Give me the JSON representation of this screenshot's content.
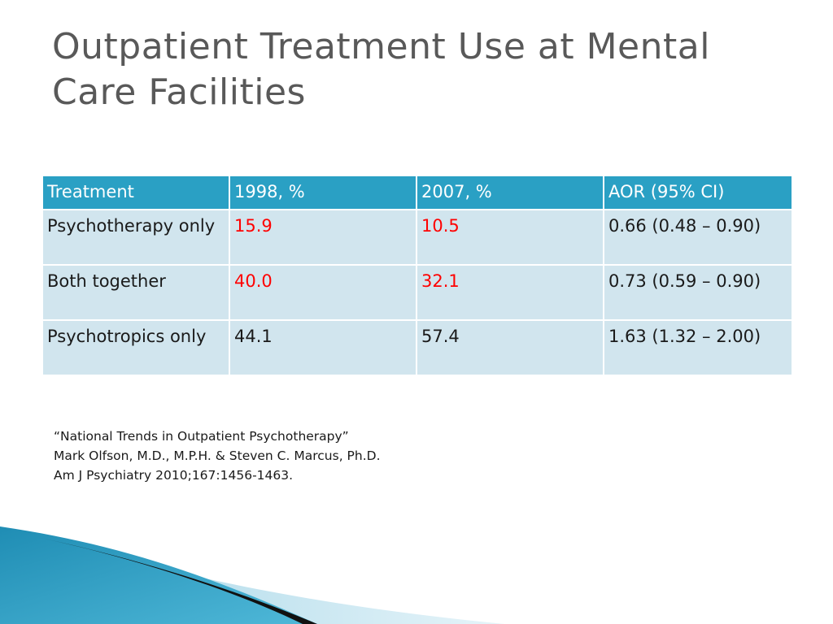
{
  "slide": {
    "title": "Outpatient Treatment Use at Mental Care Facilities"
  },
  "table": {
    "headers": [
      "Treatment",
      "1998, %",
      "2007, %",
      "AOR (95% CI)"
    ],
    "rows": [
      {
        "treatment": "Psychotherapy only",
        "y1998": "15.9",
        "y2007": "10.5",
        "aor": "0.66 (0.48 – 0.90)"
      },
      {
        "treatment": "Both together",
        "y1998": "40.0",
        "y2007": "32.1",
        "aor": "0.73 (0.59 – 0.90)"
      },
      {
        "treatment": "Psychotropics only",
        "y1998": "44.1",
        "y2007": "57.4",
        "aor": "1.63 (1.32 – 2.00)"
      }
    ],
    "highlight_color": "#ff0000"
  },
  "citation": {
    "line1": "“National Trends in Outpatient Psychotherapy”",
    "line2": "Mark Olfson, M.D., M.P.H. & Steven C. Marcus, Ph.D.",
    "line3": "Am J Psychiatry 2010;167:1456-1463."
  },
  "colors": {
    "header_bg": "#2aa0c4",
    "row_bg": "#d1e5ee",
    "title": "#595959"
  }
}
